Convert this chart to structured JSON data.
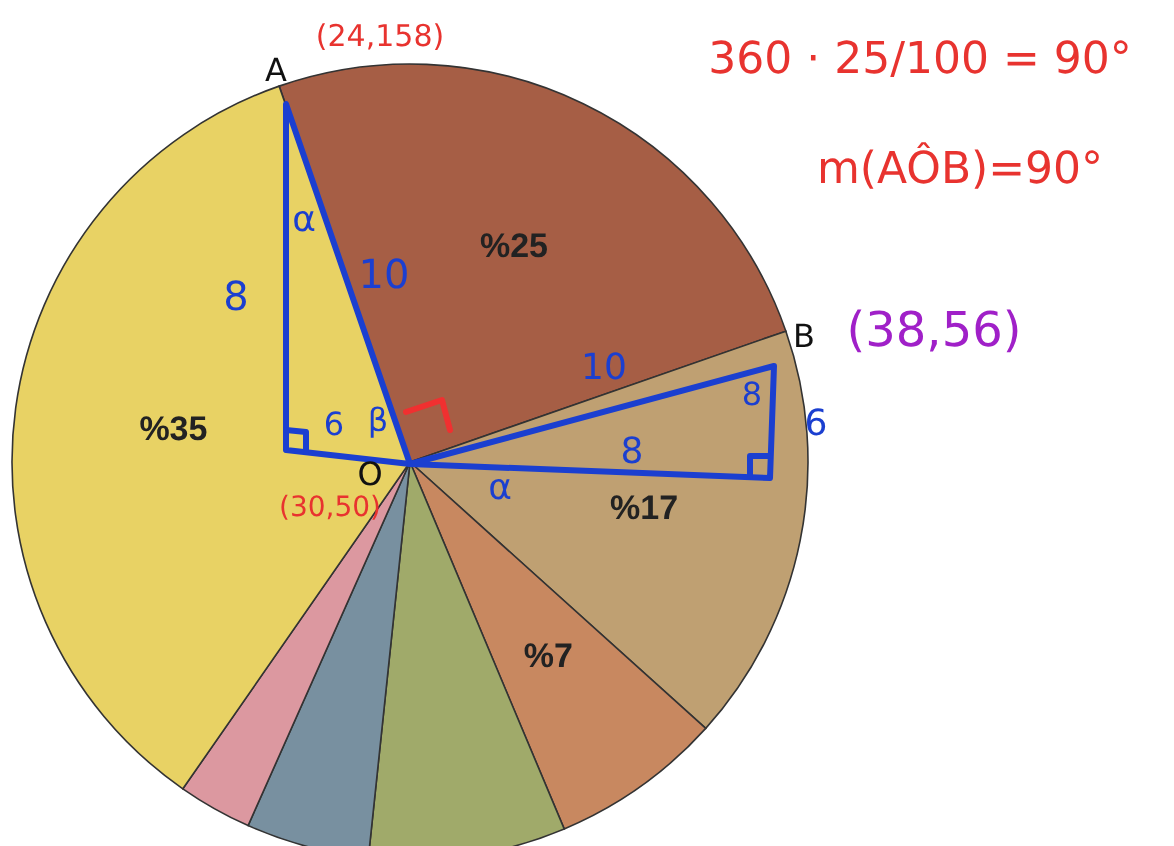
{
  "chart_data": {
    "type": "pie",
    "categories": [
      null,
      null,
      null,
      null,
      null,
      null,
      null
    ],
    "values": [
      25,
      17,
      7,
      8,
      5,
      3,
      35
    ],
    "colors": [
      "#a65e45",
      "#bfa072",
      "#c88860",
      "#a0aa6a",
      "#7890a0",
      "#dc98a0",
      "#e8d264"
    ],
    "value_labels": [
      "%25",
      "%17",
      "%7",
      null,
      null,
      null,
      "%35"
    ],
    "annotations": [
      "A",
      "B",
      "O",
      "(24,158)",
      "360 · 25/100 = 90°",
      "m(AÔB)=90°",
      "(38,56)",
      "(30,50)",
      "8",
      "α",
      "10",
      "6",
      "β",
      "10",
      "8",
      "α",
      "8",
      "6"
    ]
  }
}
